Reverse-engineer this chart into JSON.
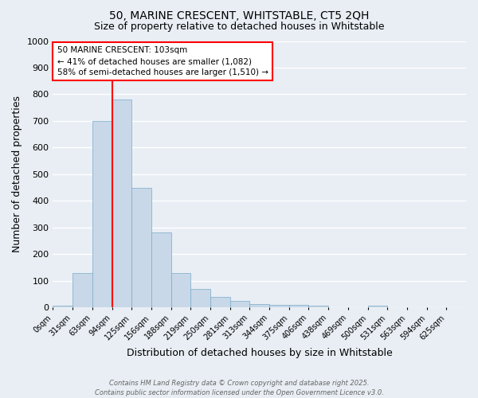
{
  "title_line1": "50, MARINE CRESCENT, WHITSTABLE, CT5 2QH",
  "title_line2": "Size of property relative to detached houses in Whitstable",
  "xlabel": "Distribution of detached houses by size in Whitstable",
  "ylabel": "Number of detached properties",
  "bin_labels": [
    "0sqm",
    "31sqm",
    "63sqm",
    "94sqm",
    "125sqm",
    "156sqm",
    "188sqm",
    "219sqm",
    "250sqm",
    "281sqm",
    "313sqm",
    "344sqm",
    "375sqm",
    "406sqm",
    "438sqm",
    "469sqm",
    "500sqm",
    "531sqm",
    "563sqm",
    "594sqm",
    "625sqm"
  ],
  "bar_values": [
    5,
    130,
    700,
    780,
    450,
    280,
    130,
    68,
    38,
    25,
    12,
    10,
    10,
    5,
    0,
    0,
    5,
    0,
    0,
    0,
    0
  ],
  "bar_color": "#c8d8e8",
  "bar_edge_color": "#7aaac8",
  "vline_x_idx": 3,
  "vline_color": "red",
  "ylim": [
    0,
    1000
  ],
  "yticks": [
    0,
    100,
    200,
    300,
    400,
    500,
    600,
    700,
    800,
    900,
    1000
  ],
  "annotation_text": "50 MARINE CRESCENT: 103sqm\n← 41% of detached houses are smaller (1,082)\n58% of semi-detached houses are larger (1,510) →",
  "annotation_box_color": "#ffffff",
  "annotation_box_edge": "red",
  "footer_line1": "Contains HM Land Registry data © Crown copyright and database right 2025.",
  "footer_line2": "Contains public sector information licensed under the Open Government Licence v3.0.",
  "background_color": "#e8eef4",
  "grid_color": "#ffffff"
}
